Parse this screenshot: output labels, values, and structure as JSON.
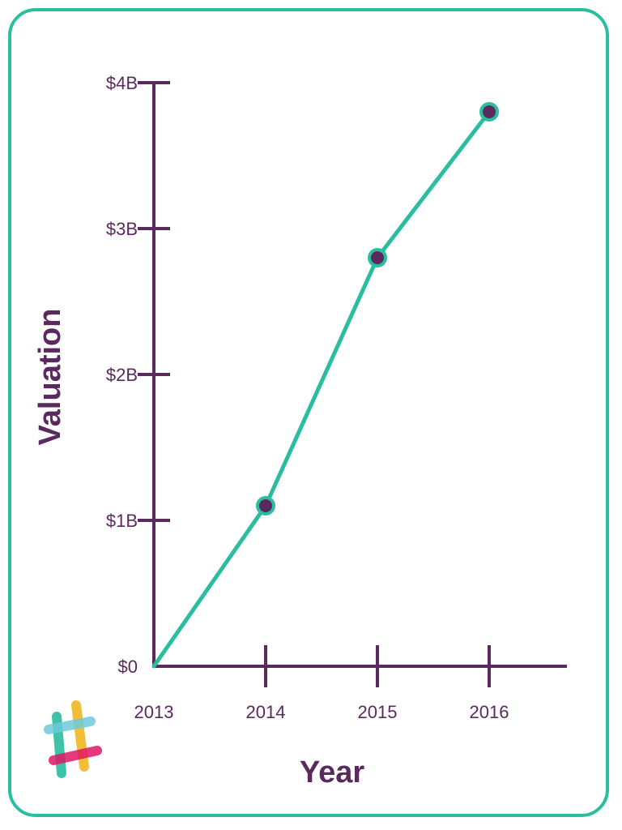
{
  "colors": {
    "frame": "#2bbd9f",
    "axis": "#5a2a5e",
    "line": "#2bbd9f",
    "marker_fill": "#5a2a5e",
    "marker_stroke": "#2bbd9f"
  },
  "logo": {
    "icon": "slack-hash-logo-icon"
  },
  "chart_data": {
    "type": "line",
    "title": "",
    "xlabel": "Year",
    "ylabel": "Valuation",
    "x": [
      "2013",
      "2014",
      "2015",
      "2016"
    ],
    "series": [
      {
        "values": [
          0,
          1.1,
          2.8,
          3.8
        ]
      }
    ],
    "y_unit": "B USD",
    "ylim": [
      0,
      4
    ],
    "yticks": [
      0,
      1,
      2,
      3,
      4
    ],
    "ytick_labels": [
      "$0",
      "$1B",
      "$2B",
      "$3B",
      "$4B"
    ],
    "markers_on": [
      false,
      true,
      true,
      true
    ],
    "grid": false,
    "legend": "none"
  }
}
